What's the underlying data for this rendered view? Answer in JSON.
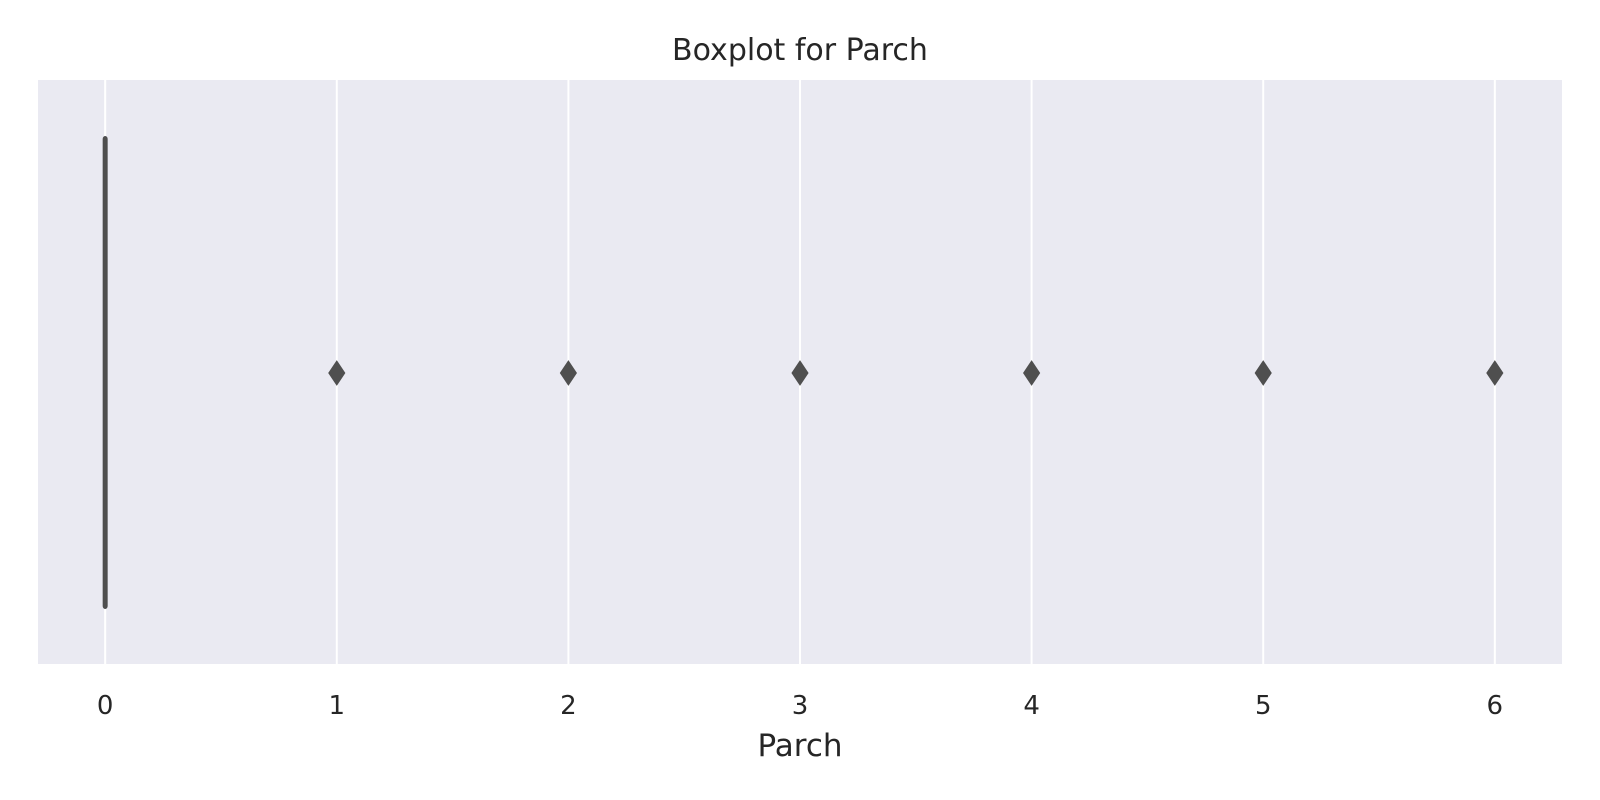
{
  "chart_data": {
    "type": "boxplot",
    "orientation": "horizontal",
    "title": "Boxplot for Parch",
    "xlabel": "Parch",
    "ylabel": "",
    "xlim": [
      -0.29,
      6.29
    ],
    "x_ticks": [
      0,
      1,
      2,
      3,
      4,
      5,
      6
    ],
    "x_tick_labels": [
      "0",
      "1",
      "2",
      "3",
      "4",
      "5",
      "6"
    ],
    "grid": true,
    "box": {
      "min": 0,
      "q1": 0,
      "median": 0,
      "q3": 0,
      "max": 0
    },
    "outliers": [
      1,
      2,
      3,
      4,
      5,
      6
    ],
    "colors": {
      "plot_background": "#eaeaf2",
      "grid": "#ffffff",
      "box": "#4f4f4f",
      "text": "#262626"
    }
  }
}
